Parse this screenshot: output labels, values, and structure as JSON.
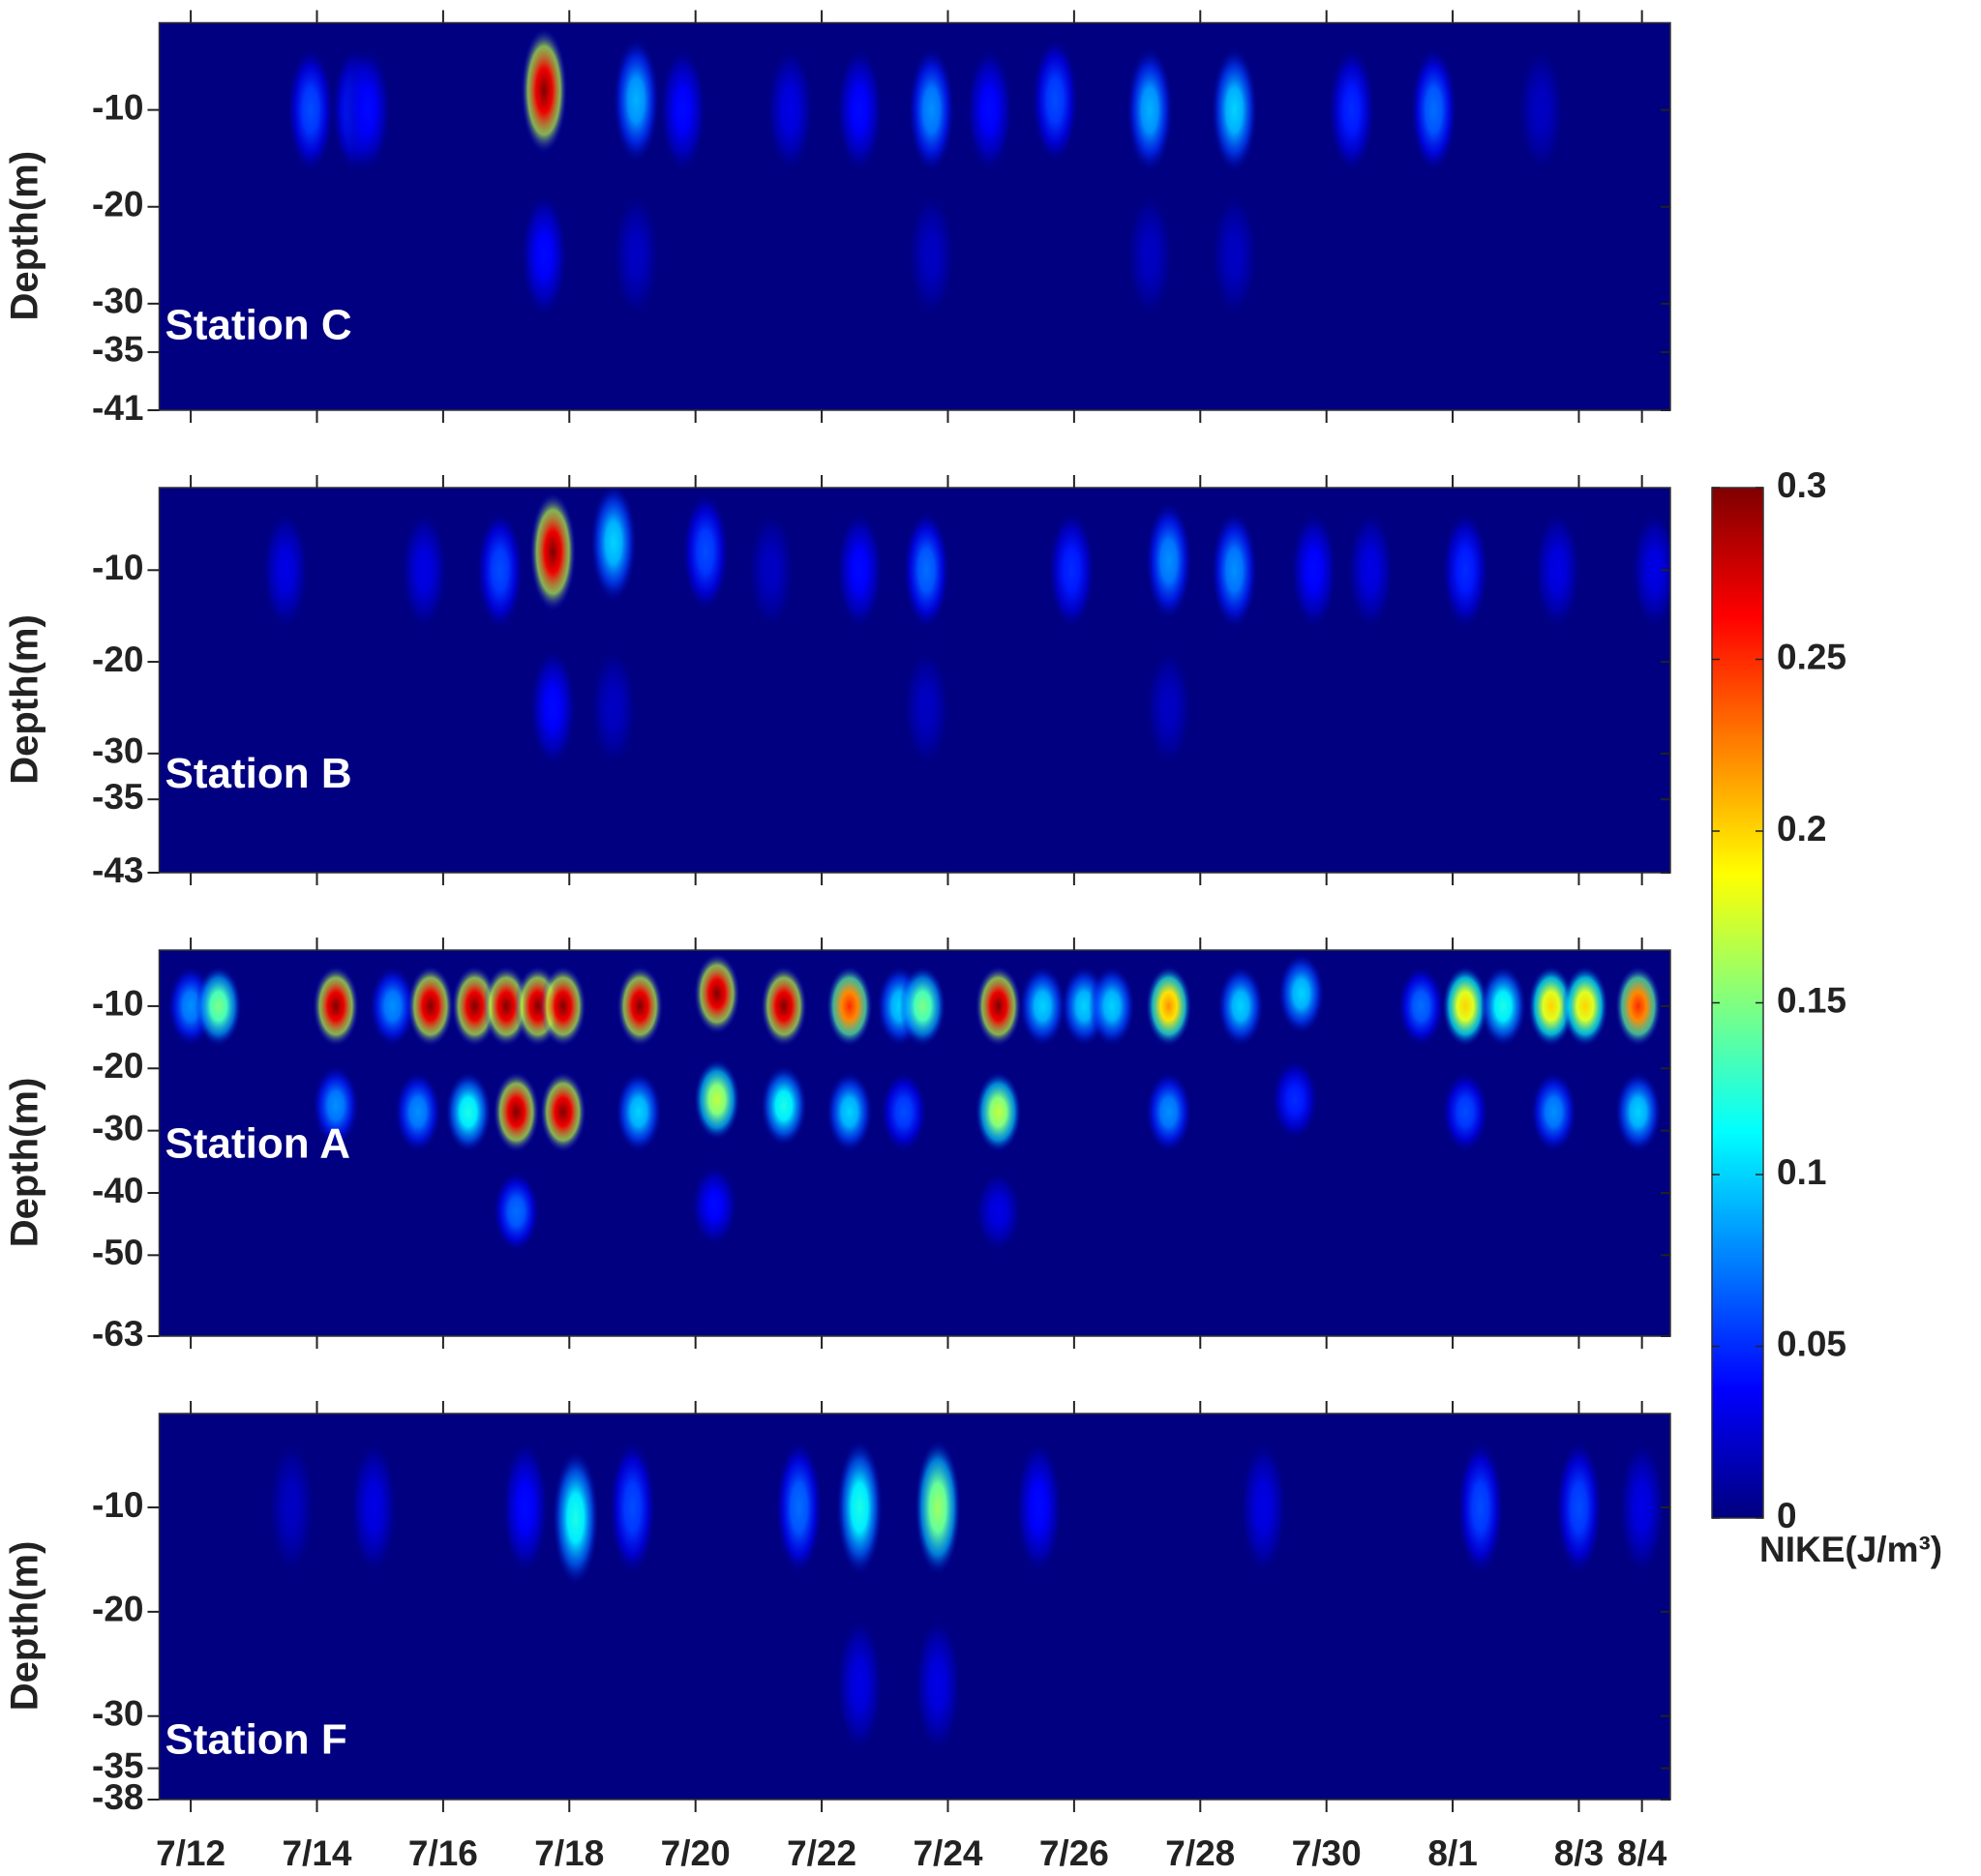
{
  "chart_data": [
    {
      "type": "heatmap",
      "label": "Station C",
      "ylabel": "Depth(m)",
      "xlim": [
        11.5,
        35.45
      ],
      "ylim": [
        -41,
        -1
      ],
      "yticks": [
        -10,
        -20,
        -30,
        -35,
        -41
      ],
      "blobs": {
        "x": [
          13.9,
          14.6,
          14.8,
          17.6,
          19.06,
          19.8,
          21.5,
          22.6,
          23.74,
          24.66,
          25.7,
          27.2,
          28.54,
          30.4,
          31.7,
          33.4,
          17.6,
          19.06,
          23.74,
          27.2,
          28.54
        ],
        "y": [
          -10,
          -10,
          -10,
          -8,
          -9,
          -10,
          -10,
          -10,
          -10,
          -10,
          -9,
          -10,
          -10,
          -10,
          -10,
          -10,
          -25,
          -25,
          -25,
          -25,
          -25
        ],
        "values": [
          0.06,
          0.05,
          0.04,
          0.3,
          0.09,
          0.04,
          0.03,
          0.04,
          0.08,
          0.04,
          0.06,
          0.09,
          0.1,
          0.05,
          0.07,
          0.02,
          0.04,
          0.02,
          0.02,
          0.02,
          0.02
        ]
      }
    },
    {
      "type": "heatmap",
      "label": "Station B",
      "ylabel": "Depth(m)",
      "xlim": [
        11.5,
        35.45
      ],
      "ylim": [
        -43,
        -1
      ],
      "yticks": [
        -10,
        -20,
        -30,
        -35,
        -43
      ],
      "blobs": {
        "x": [
          13.5,
          15.7,
          16.9,
          17.74,
          18.7,
          20.16,
          21.2,
          22.6,
          23.66,
          25.96,
          27.5,
          28.54,
          29.8,
          30.7,
          32.2,
          33.66,
          35.2,
          17.74,
          18.7,
          23.66,
          27.5
        ],
        "y": [
          -10,
          -10,
          -10,
          -8,
          -7,
          -8,
          -10,
          -10,
          -10,
          -10,
          -9,
          -10,
          -10,
          -10,
          -10,
          -10,
          -10,
          -25,
          -25,
          -25,
          -25
        ],
        "values": [
          0.03,
          0.03,
          0.06,
          0.3,
          0.1,
          0.06,
          0.02,
          0.04,
          0.07,
          0.05,
          0.08,
          0.08,
          0.04,
          0.03,
          0.05,
          0.03,
          0.03,
          0.04,
          0.02,
          0.02,
          0.02
        ]
      }
    },
    {
      "type": "heatmap",
      "label": "Station A",
      "ylabel": "Depth(m)",
      "xlim": [
        11.5,
        35.45
      ],
      "ylim": [
        -63,
        -1
      ],
      "yticks": [
        -10,
        -20,
        -30,
        -40,
        -50,
        -63
      ],
      "blobs": {
        "x": [
          12,
          12.44,
          14.3,
          15.2,
          15.8,
          16.5,
          17,
          17.5,
          17.9,
          19.12,
          20.34,
          21.4,
          22.44,
          23.24,
          23.6,
          24.8,
          25.5,
          26.16,
          26.6,
          27.5,
          28.64,
          29.6,
          31.5,
          32.2,
          32.8,
          33.56,
          34.1,
          34.94,
          14.3,
          15.6,
          16.4,
          17.16,
          17.9,
          19.1,
          20.34,
          21.4,
          22.44,
          23.3,
          24.8,
          27.5,
          29.5,
          32.2,
          33.6,
          34.94,
          17.16,
          20.3,
          24.8
        ],
        "y": [
          -10,
          -10,
          -10,
          -10,
          -10,
          -10,
          -10,
          -10,
          -10,
          -10,
          -8,
          -10,
          -10,
          -10,
          -10,
          -10,
          -10,
          -10,
          -10,
          -10,
          -10,
          -8,
          -10,
          -10,
          -10,
          -10,
          -10,
          -10,
          -26,
          -27,
          -27,
          -27,
          -27,
          -27,
          -25,
          -26,
          -27,
          -27,
          -27,
          -27,
          -25,
          -27,
          -27,
          -27,
          -43,
          -42,
          -43
        ],
        "values": [
          0.08,
          0.15,
          0.3,
          0.08,
          0.3,
          0.3,
          0.3,
          0.3,
          0.3,
          0.3,
          0.3,
          0.3,
          0.25,
          0.1,
          0.15,
          0.3,
          0.1,
          0.1,
          0.1,
          0.22,
          0.1,
          0.1,
          0.07,
          0.2,
          0.12,
          0.2,
          0.2,
          0.25,
          0.08,
          0.08,
          0.12,
          0.3,
          0.3,
          0.1,
          0.17,
          0.12,
          0.1,
          0.06,
          0.17,
          0.08,
          0.05,
          0.06,
          0.08,
          0.1,
          0.07,
          0.04,
          0.03
        ]
      }
    },
    {
      "type": "heatmap",
      "label": "Station F",
      "ylabel": "Depth(m)",
      "xlim": [
        11.5,
        35.45
      ],
      "ylim": [
        -38,
        -1
      ],
      "yticks": [
        -10,
        -20,
        -30,
        -35,
        -38
      ],
      "xticks": [
        {
          "value": 12,
          "label": "7/12"
        },
        {
          "value": 14,
          "label": "7/14"
        },
        {
          "value": 16,
          "label": "7/16"
        },
        {
          "value": 18,
          "label": "7/18"
        },
        {
          "value": 20,
          "label": "7/20"
        },
        {
          "value": 22,
          "label": "7/22"
        },
        {
          "value": 24,
          "label": "7/24"
        },
        {
          "value": 26,
          "label": "7/26"
        },
        {
          "value": 28,
          "label": "7/28"
        },
        {
          "value": 30,
          "label": "7/30"
        },
        {
          "value": 32,
          "label": "8/1"
        },
        {
          "value": 34,
          "label": "8/3"
        },
        {
          "value": 35,
          "label": "8/4"
        }
      ],
      "blobs": {
        "x": [
          13.6,
          14.9,
          17.3,
          18.1,
          19.0,
          21.64,
          22.6,
          23.84,
          25.44,
          29,
          32.44,
          34,
          35,
          22.6,
          23.84
        ],
        "y": [
          -10,
          -10,
          -10,
          -11,
          -10,
          -10,
          -10,
          -10,
          -10,
          -10,
          -10,
          -10,
          -10,
          -27,
          -27
        ],
        "values": [
          0.02,
          0.03,
          0.04,
          0.12,
          0.06,
          0.07,
          0.12,
          0.16,
          0.04,
          0.03,
          0.06,
          0.06,
          0.03,
          0.03,
          0.03
        ]
      }
    },
    {
      "type": "colorbar",
      "label": "NIKE(J/m³)",
      "colormap": "jet",
      "clim": [
        0,
        0.3
      ],
      "ticks": [
        0,
        0.05,
        0.1,
        0.15,
        0.2,
        0.25,
        0.3
      ]
    }
  ]
}
